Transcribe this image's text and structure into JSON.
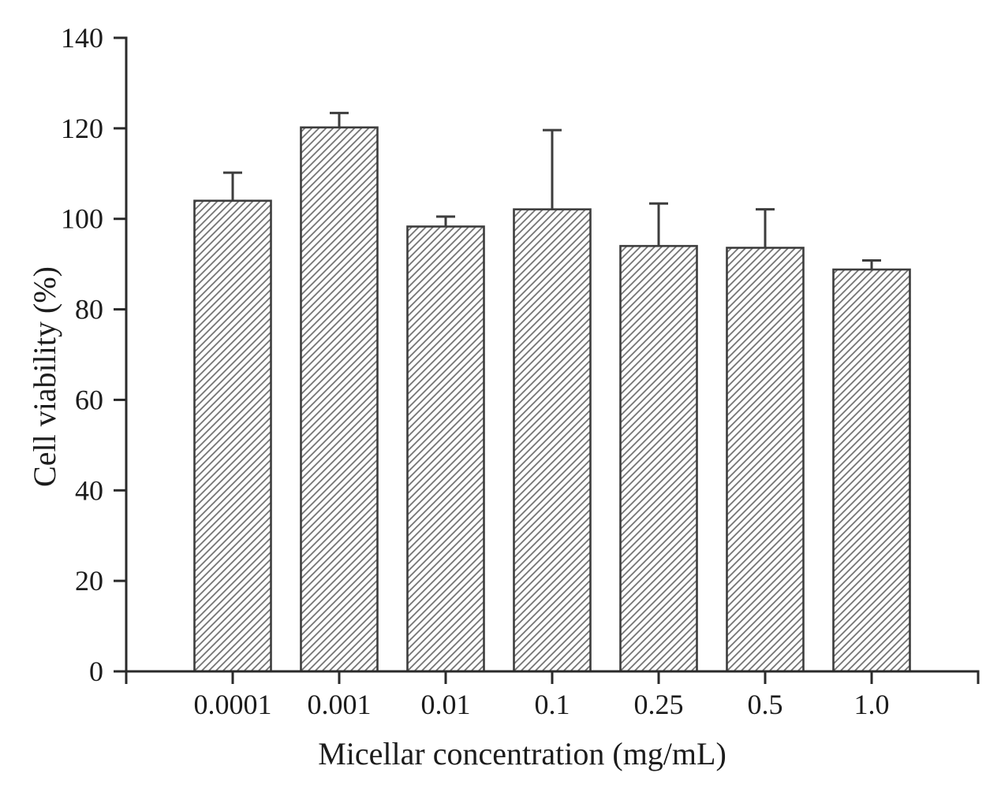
{
  "figure": {
    "background": "#ffffff"
  },
  "chart_data": {
    "type": "bar",
    "title": "",
    "xlabel": "Micellar concentration (mg/mL)",
    "ylabel": "Cell viability (%)",
    "categories": [
      "0.0001",
      "0.001",
      "0.01",
      "0.1",
      "0.25",
      "0.5",
      "1.0"
    ],
    "values": [
      104.0,
      120.2,
      98.3,
      102.1,
      94.0,
      93.6,
      88.8
    ],
    "errors_upper": [
      6.2,
      3.2,
      2.2,
      17.5,
      9.4,
      8.5,
      2.0
    ],
    "ylim": [
      0,
      140
    ],
    "yticks": [
      0,
      20,
      40,
      60,
      80,
      100,
      120,
      140
    ],
    "grid": false,
    "legend": false,
    "bar_fill_style": "diagonal-hatch",
    "bar_fill_background": "#ffffff",
    "hatch_line_color": "#747474",
    "bar_edge_color": "#3d3d3d",
    "error_bar_color": "#3d3d3d",
    "axis_color": "#2a2a2a",
    "text_color": "#1c1c1c"
  }
}
